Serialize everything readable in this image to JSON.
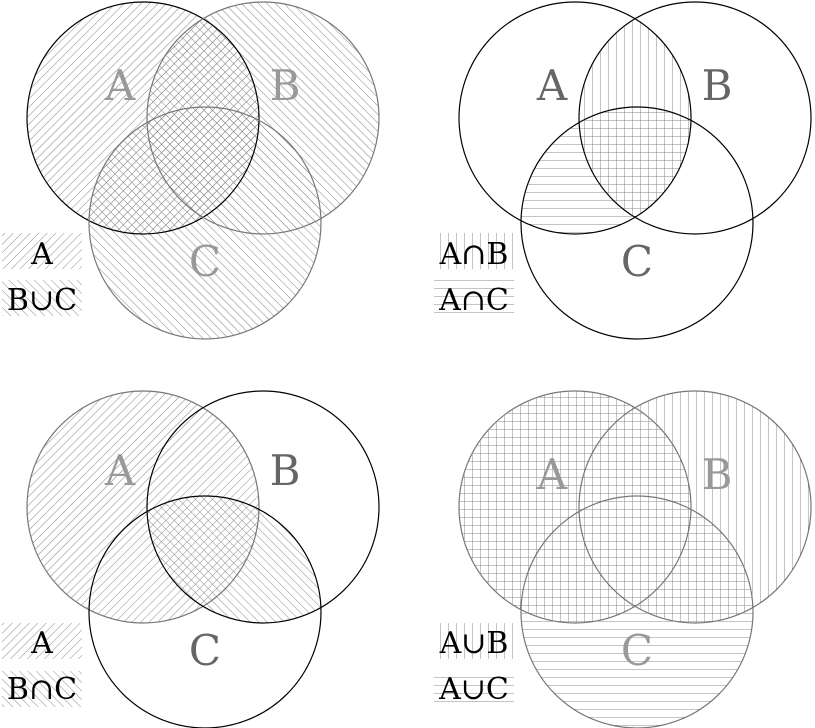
{
  "panels": [
    {
      "id": "a-intersect-b-union-c",
      "sets": [
        "A",
        "B",
        "C"
      ],
      "shading": {
        "A": "diag-left",
        "B": "diag-right",
        "C": "diag-right"
      },
      "labels_faded": [
        true,
        true,
        true
      ],
      "legend": [
        {
          "text": "A",
          "pattern": "diag-left"
        },
        {
          "text": "B∪C",
          "pattern": "diag-right"
        }
      ]
    },
    {
      "id": "a-intersect-b-union-a-intersect-c",
      "sets": [
        "A",
        "B",
        "C"
      ],
      "shading": {
        "AB": "vert",
        "AC": "horiz"
      },
      "labels_faded": [
        false,
        false,
        false
      ],
      "legend": [
        {
          "text": "A∩B",
          "pattern": "vert"
        },
        {
          "text": "A∩C",
          "pattern": "horiz"
        }
      ]
    },
    {
      "id": "a-union-b-intersect-c",
      "sets": [
        "A",
        "B",
        "C"
      ],
      "shading": {
        "A": "diag-left",
        "BC": "diag-right"
      },
      "labels_faded": [
        true,
        false,
        false
      ],
      "legend": [
        {
          "text": "A",
          "pattern": "diag-left"
        },
        {
          "text": "B∩C",
          "pattern": "diag-right"
        }
      ]
    },
    {
      "id": "a-union-b-intersect-a-union-c",
      "sets": [
        "A",
        "B",
        "C"
      ],
      "shading": {
        "A": "both",
        "B": "vert",
        "C": "horiz"
      },
      "labels_faded": [
        true,
        true,
        true
      ],
      "legend": [
        {
          "text": "A∪B",
          "pattern": "vert"
        },
        {
          "text": "A∪C",
          "pattern": "horiz"
        }
      ]
    }
  ],
  "colors": {
    "stroke": "#000000",
    "hatch": "#777777",
    "faded_label": "#999999",
    "label": "#666666"
  }
}
